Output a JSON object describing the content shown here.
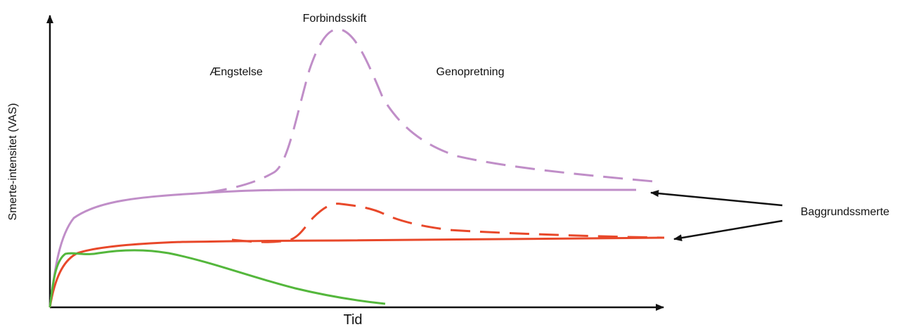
{
  "labels": {
    "y_axis": "Smerte-intensitet (VAS)",
    "x_axis": "Tid",
    "phase_anxiety": "Ængstelse",
    "phase_dressing_change": "Forbindsskift",
    "phase_recovery": "Genopretning",
    "background_pain": "Baggrundssmerte"
  },
  "colors": {
    "purple": "#c08ec8",
    "red": "#e8482a",
    "green": "#54b73c",
    "axis": "#111111"
  }
}
